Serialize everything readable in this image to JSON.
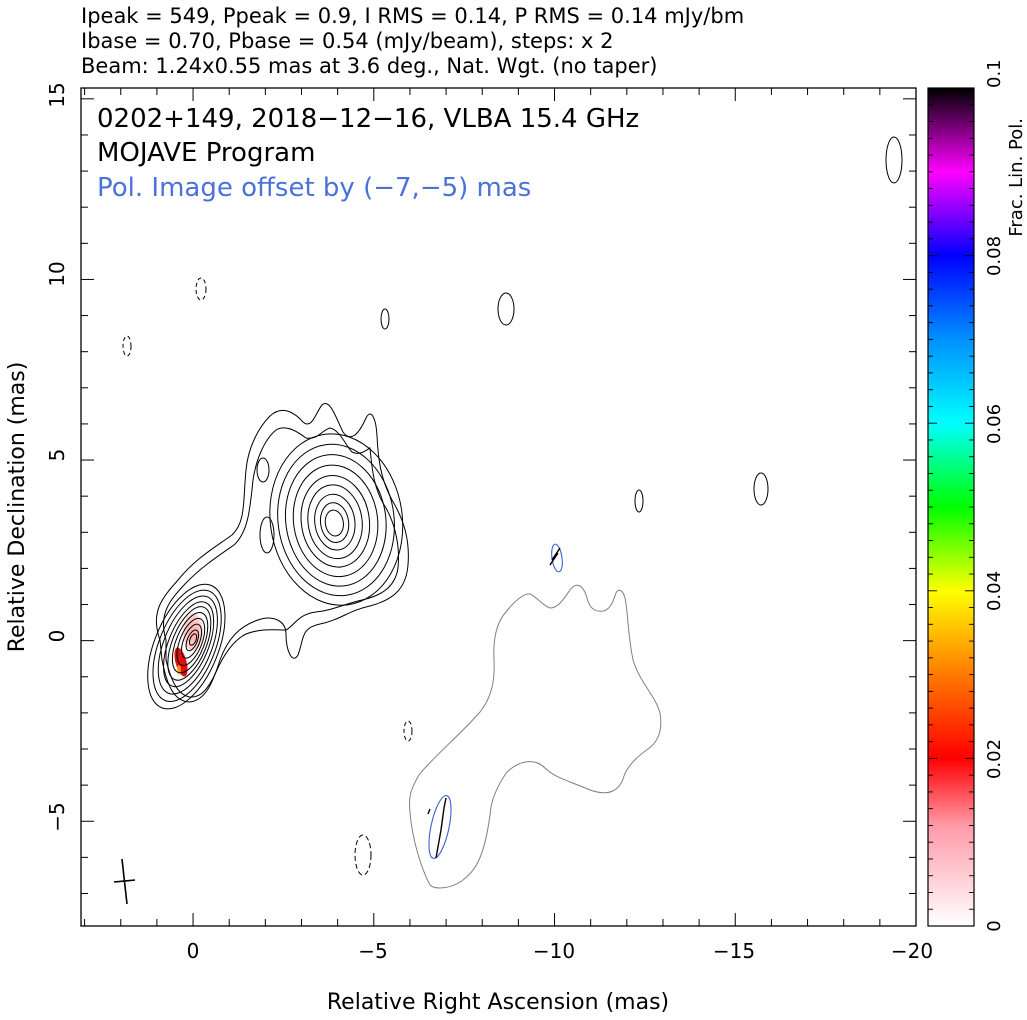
{
  "header": {
    "line1": "Ipeak = 549, Ppeak = 0.9, I RMS = 0.14, P RMS = 0.14 mJy/bm",
    "line2": "Ibase = 0.70, Pbase = 0.54 (mJy/beam), steps: x 2",
    "line3": "Beam: 1.24x0.55 mas at 3.6 deg., Nat. Wgt. (no taper)"
  },
  "annotations": {
    "source": "0202+149, 2018−12−16, VLBA 15.4 GHz",
    "program": "MOJAVE Program",
    "pol_offset": "Pol. Image offset by (−7,−5) mas"
  },
  "colors": {
    "annotation_blue": "#4a72d8",
    "contour": "#000000",
    "pol_contour": "#808080",
    "vector_blue": "#3a5fd0"
  },
  "chart_data": {
    "type": "contour",
    "xlabel": "Relative Right Ascension (mas)",
    "ylabel": "Relative Declination (mas)",
    "xlim": [
      3.1,
      -20
    ],
    "ylim": [
      -7.9,
      15.3
    ],
    "x_ticks": [
      0,
      -5,
      -10,
      -15,
      -20
    ],
    "x_tick_labels": [
      "0",
      "−5",
      "−10",
      "−15",
      "−20"
    ],
    "y_ticks": [
      -5,
      0,
      5,
      10,
      15
    ],
    "y_tick_labels": [
      "−5",
      "0",
      "5",
      "10",
      "15"
    ],
    "core": {
      "x": 0,
      "y": 0,
      "peak_mJy_per_beam": 549
    },
    "jet_component": {
      "x": -3.9,
      "y": 3.4
    },
    "contour_levels_mJy_per_beam": [
      0.7,
      1.4,
      2.8,
      5.6,
      11.2,
      22.4,
      44.8,
      89.6,
      179.2,
      358.4
    ],
    "pol_image_offset_mas": [
      -7,
      -5
    ],
    "beam": {
      "major_mas": 1.24,
      "minor_mas": 0.55,
      "pa_deg": 3.6
    },
    "colorbar": {
      "label": "Frac. Lin. Pol.",
      "range": [
        0,
        0.1
      ],
      "ticks": [
        0,
        0.02,
        0.04,
        0.06,
        0.08,
        0.1
      ],
      "tick_labels": [
        "0",
        "0.02",
        "0.04",
        "0.06",
        "0.08",
        "0.1"
      ]
    }
  }
}
